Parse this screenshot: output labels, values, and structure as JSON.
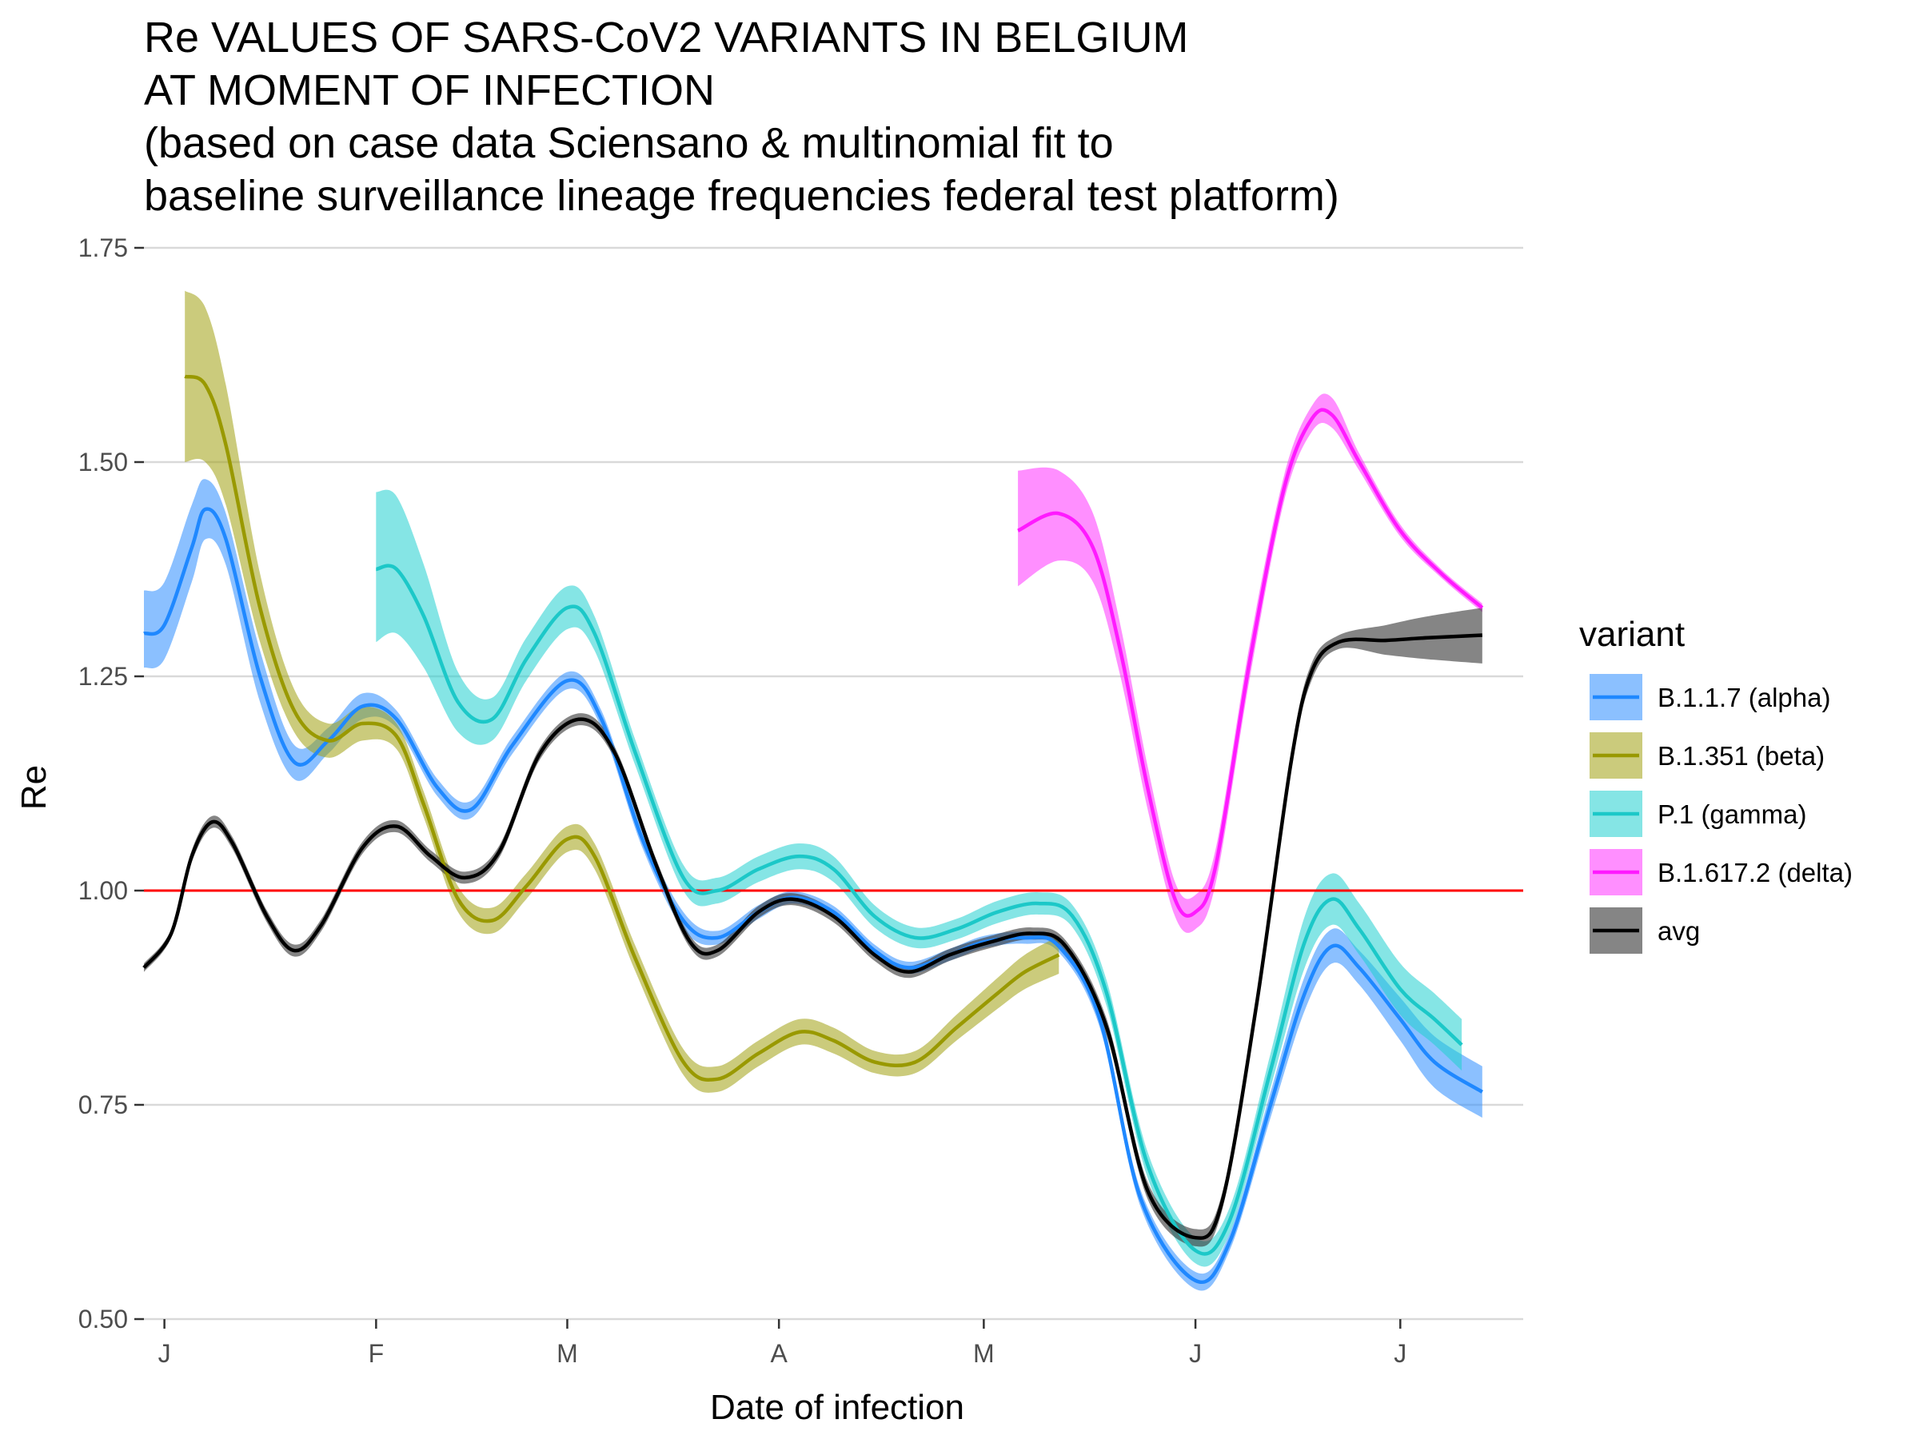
{
  "chart_data": {
    "type": "line",
    "title_lines": [
      "Re VALUES OF SARS-CoV2 VARIANTS IN BELGIUM",
      "AT MOMENT OF INFECTION",
      "(based on case data Sciensano & multinomial fit to",
      "baseline surveillance lineage frequencies federal test platform)"
    ],
    "xlabel": "Date of infection",
    "ylabel": "Re",
    "ylim": [
      0.5,
      1.75
    ],
    "yticks": [
      {
        "value": 0.5,
        "label": "0.50"
      },
      {
        "value": 0.75,
        "label": "0.75"
      },
      {
        "value": 1.0,
        "label": "1.00"
      },
      {
        "value": 1.25,
        "label": "1.25"
      },
      {
        "value": 1.5,
        "label": "1.50"
      },
      {
        "value": 1.75,
        "label": "1.75"
      }
    ],
    "xlim": [
      "2020-12-29",
      "2021-07-19"
    ],
    "xticks": [
      {
        "date": "2021-01-01",
        "label": "J"
      },
      {
        "date": "2021-02-01",
        "label": "F"
      },
      {
        "date": "2021-03-01",
        "label": "M"
      },
      {
        "date": "2021-04-01",
        "label": "A"
      },
      {
        "date": "2021-05-01",
        "label": "M"
      },
      {
        "date": "2021-06-01",
        "label": "J"
      },
      {
        "date": "2021-07-01",
        "label": "J"
      }
    ],
    "reference_line": {
      "y": 1.0,
      "color": "#ff0000"
    },
    "legend_title": "variant",
    "legend_position": "right",
    "grid": true,
    "series": [
      {
        "name": "B.1.1.7 (alpha)",
        "color": "#1f88ff",
        "ribbon": "#2b8cff",
        "ribbon_opacity": 0.55,
        "points": [
          [
            "2020-12-29",
            1.3,
            1.26,
            1.35
          ],
          [
            "2021-01-01",
            1.31,
            1.27,
            1.36
          ],
          [
            "2021-01-05",
            1.4,
            1.36,
            1.45
          ],
          [
            "2021-01-07",
            1.445,
            1.41,
            1.48
          ],
          [
            "2021-01-10",
            1.41,
            1.38,
            1.44
          ],
          [
            "2021-01-15",
            1.25,
            1.22,
            1.28
          ],
          [
            "2021-01-20",
            1.15,
            1.13,
            1.17
          ],
          [
            "2021-01-25",
            1.175,
            1.16,
            1.19
          ],
          [
            "2021-01-30",
            1.215,
            1.2,
            1.23
          ],
          [
            "2021-02-04",
            1.2,
            1.19,
            1.21
          ],
          [
            "2021-02-10",
            1.12,
            1.11,
            1.13
          ],
          [
            "2021-02-15",
            1.095,
            1.085,
            1.105
          ],
          [
            "2021-02-21",
            1.17,
            1.16,
            1.18
          ],
          [
            "2021-03-01",
            1.245,
            1.235,
            1.255
          ],
          [
            "2021-03-06",
            1.2,
            1.19,
            1.21
          ],
          [
            "2021-03-12",
            1.06,
            1.05,
            1.07
          ],
          [
            "2021-03-18",
            0.965,
            0.955,
            0.975
          ],
          [
            "2021-03-23",
            0.945,
            0.937,
            0.953
          ],
          [
            "2021-03-29",
            0.975,
            0.967,
            0.983
          ],
          [
            "2021-04-03",
            0.992,
            0.985,
            0.999
          ],
          [
            "2021-04-09",
            0.975,
            0.968,
            0.982
          ],
          [
            "2021-04-15",
            0.93,
            0.923,
            0.937
          ],
          [
            "2021-04-20",
            0.91,
            0.903,
            0.917
          ],
          [
            "2021-04-26",
            0.925,
            0.918,
            0.932
          ],
          [
            "2021-05-01",
            0.94,
            0.933,
            0.947
          ],
          [
            "2021-05-07",
            0.945,
            0.938,
            0.952
          ],
          [
            "2021-05-12",
            0.935,
            0.928,
            0.942
          ],
          [
            "2021-05-18",
            0.85,
            0.84,
            0.86
          ],
          [
            "2021-05-24",
            0.64,
            0.63,
            0.65
          ],
          [
            "2021-06-01",
            0.545,
            0.535,
            0.555
          ],
          [
            "2021-06-06",
            0.59,
            0.58,
            0.6
          ],
          [
            "2021-06-12",
            0.75,
            0.735,
            0.765
          ],
          [
            "2021-06-17",
            0.88,
            0.86,
            0.9
          ],
          [
            "2021-06-21",
            0.935,
            0.915,
            0.955
          ],
          [
            "2021-06-25",
            0.91,
            0.89,
            0.93
          ],
          [
            "2021-07-01",
            0.85,
            0.825,
            0.875
          ],
          [
            "2021-07-06",
            0.8,
            0.77,
            0.83
          ],
          [
            "2021-07-13",
            0.765,
            0.735,
            0.795
          ]
        ]
      },
      {
        "name": "B.1.351 (beta)",
        "color": "#999900",
        "ribbon": "#a0a010",
        "ribbon_opacity": 0.55,
        "points": [
          [
            "2021-01-04",
            1.6,
            1.5,
            1.7
          ],
          [
            "2021-01-07",
            1.59,
            1.5,
            1.68
          ],
          [
            "2021-01-10",
            1.52,
            1.45,
            1.59
          ],
          [
            "2021-01-15",
            1.33,
            1.29,
            1.37
          ],
          [
            "2021-01-20",
            1.21,
            1.185,
            1.235
          ],
          [
            "2021-01-25",
            1.175,
            1.155,
            1.195
          ],
          [
            "2021-01-30",
            1.195,
            1.175,
            1.215
          ],
          [
            "2021-02-04",
            1.18,
            1.165,
            1.195
          ],
          [
            "2021-02-08",
            1.1,
            1.085,
            1.115
          ],
          [
            "2021-02-13",
            0.99,
            0.975,
            1.005
          ],
          [
            "2021-02-18",
            0.965,
            0.95,
            0.98
          ],
          [
            "2021-02-23",
            1.005,
            0.99,
            1.02
          ],
          [
            "2021-03-01",
            1.06,
            1.045,
            1.075
          ],
          [
            "2021-03-05",
            1.04,
            1.025,
            1.055
          ],
          [
            "2021-03-11",
            0.92,
            0.905,
            0.935
          ],
          [
            "2021-03-18",
            0.8,
            0.785,
            0.815
          ],
          [
            "2021-03-23",
            0.78,
            0.765,
            0.795
          ],
          [
            "2021-03-29",
            0.81,
            0.795,
            0.825
          ],
          [
            "2021-04-04",
            0.835,
            0.82,
            0.85
          ],
          [
            "2021-04-09",
            0.825,
            0.81,
            0.84
          ],
          [
            "2021-04-15",
            0.8,
            0.787,
            0.813
          ],
          [
            "2021-04-21",
            0.8,
            0.787,
            0.813
          ],
          [
            "2021-04-27",
            0.84,
            0.825,
            0.855
          ],
          [
            "2021-05-03",
            0.88,
            0.862,
            0.898
          ],
          [
            "2021-05-07",
            0.905,
            0.885,
            0.925
          ],
          [
            "2021-05-12",
            0.925,
            0.903,
            0.947
          ]
        ]
      },
      {
        "name": "P.1 (gamma)",
        "color": "#1cc8c8",
        "ribbon": "#20d0d0",
        "ribbon_opacity": 0.55,
        "points": [
          [
            "2021-02-01",
            1.375,
            1.29,
            1.465
          ],
          [
            "2021-02-04",
            1.375,
            1.3,
            1.46
          ],
          [
            "2021-02-08",
            1.32,
            1.26,
            1.38
          ],
          [
            "2021-02-13",
            1.22,
            1.185,
            1.255
          ],
          [
            "2021-02-18",
            1.2,
            1.175,
            1.225
          ],
          [
            "2021-02-23",
            1.27,
            1.245,
            1.295
          ],
          [
            "2021-03-01",
            1.33,
            1.305,
            1.355
          ],
          [
            "2021-03-05",
            1.3,
            1.28,
            1.32
          ],
          [
            "2021-03-11",
            1.16,
            1.145,
            1.175
          ],
          [
            "2021-03-18",
            1.015,
            1.0,
            1.03
          ],
          [
            "2021-03-23",
            1.0,
            0.985,
            1.015
          ],
          [
            "2021-03-29",
            1.025,
            1.01,
            1.04
          ],
          [
            "2021-04-04",
            1.04,
            1.025,
            1.055
          ],
          [
            "2021-04-09",
            1.025,
            1.01,
            1.04
          ],
          [
            "2021-04-15",
            0.97,
            0.957,
            0.983
          ],
          [
            "2021-04-21",
            0.945,
            0.933,
            0.957
          ],
          [
            "2021-04-27",
            0.955,
            0.943,
            0.967
          ],
          [
            "2021-05-03",
            0.975,
            0.962,
            0.988
          ],
          [
            "2021-05-09",
            0.985,
            0.972,
            0.998
          ],
          [
            "2021-05-14",
            0.97,
            0.957,
            0.983
          ],
          [
            "2021-05-19",
            0.88,
            0.865,
            0.895
          ],
          [
            "2021-05-25",
            0.68,
            0.665,
            0.695
          ],
          [
            "2021-06-01",
            0.58,
            0.565,
            0.595
          ],
          [
            "2021-06-06",
            0.615,
            0.6,
            0.63
          ],
          [
            "2021-06-12",
            0.79,
            0.77,
            0.81
          ],
          [
            "2021-06-17",
            0.94,
            0.91,
            0.97
          ],
          [
            "2021-06-21",
            0.99,
            0.96,
            1.02
          ],
          [
            "2021-06-25",
            0.955,
            0.925,
            0.985
          ],
          [
            "2021-07-01",
            0.885,
            0.855,
            0.915
          ],
          [
            "2021-07-06",
            0.85,
            0.82,
            0.88
          ],
          [
            "2021-07-10",
            0.82,
            0.79,
            0.85
          ]
        ]
      },
      {
        "name": "B.1.617.2 (delta)",
        "color": "#ff1aff",
        "ribbon": "#ff33ff",
        "ribbon_opacity": 0.55,
        "points": [
          [
            "2021-05-06",
            1.42,
            1.355,
            1.49
          ],
          [
            "2021-05-12",
            1.44,
            1.385,
            1.49
          ],
          [
            "2021-05-17",
            1.4,
            1.36,
            1.44
          ],
          [
            "2021-05-21",
            1.28,
            1.25,
            1.31
          ],
          [
            "2021-05-25",
            1.12,
            1.095,
            1.145
          ],
          [
            "2021-05-29",
            0.99,
            0.97,
            1.01
          ],
          [
            "2021-06-01",
            0.975,
            0.955,
            0.995
          ],
          [
            "2021-06-04",
            1.03,
            1.01,
            1.05
          ],
          [
            "2021-06-09",
            1.27,
            1.25,
            1.29
          ],
          [
            "2021-06-14",
            1.47,
            1.455,
            1.485
          ],
          [
            "2021-06-18",
            1.55,
            1.535,
            1.565
          ],
          [
            "2021-06-21",
            1.555,
            1.54,
            1.575
          ],
          [
            "2021-06-25",
            1.5,
            1.49,
            1.51
          ],
          [
            "2021-07-01",
            1.42,
            1.413,
            1.427
          ],
          [
            "2021-07-07",
            1.37,
            1.365,
            1.375
          ],
          [
            "2021-07-13",
            1.33,
            1.325,
            1.335
          ]
        ]
      },
      {
        "name": "avg",
        "color": "#000000",
        "ribbon": "#333333",
        "ribbon_opacity": 0.6,
        "points": [
          [
            "2020-12-29",
            0.91,
            0.905,
            0.915
          ],
          [
            "2021-01-02",
            0.95,
            0.945,
            0.955
          ],
          [
            "2021-01-05",
            1.04,
            1.033,
            1.047
          ],
          [
            "2021-01-08",
            1.08,
            1.073,
            1.087
          ],
          [
            "2021-01-11",
            1.055,
            1.048,
            1.062
          ],
          [
            "2021-01-16",
            0.97,
            0.963,
            0.977
          ],
          [
            "2021-01-20",
            0.93,
            0.923,
            0.937
          ],
          [
            "2021-01-24",
            0.96,
            0.953,
            0.967
          ],
          [
            "2021-01-30",
            1.05,
            1.043,
            1.057
          ],
          [
            "2021-02-04",
            1.075,
            1.068,
            1.082
          ],
          [
            "2021-02-09",
            1.04,
            1.033,
            1.047
          ],
          [
            "2021-02-14",
            1.015,
            1.008,
            1.022
          ],
          [
            "2021-02-19",
            1.045,
            1.038,
            1.052
          ],
          [
            "2021-02-25",
            1.16,
            1.153,
            1.167
          ],
          [
            "2021-03-03",
            1.2,
            1.193,
            1.207
          ],
          [
            "2021-03-08",
            1.16,
            1.153,
            1.167
          ],
          [
            "2021-03-14",
            1.03,
            1.023,
            1.037
          ],
          [
            "2021-03-19",
            0.94,
            0.933,
            0.947
          ],
          [
            "2021-03-23",
            0.93,
            0.923,
            0.937
          ],
          [
            "2021-03-29",
            0.975,
            0.968,
            0.982
          ],
          [
            "2021-04-03",
            0.99,
            0.983,
            0.997
          ],
          [
            "2021-04-09",
            0.97,
            0.963,
            0.977
          ],
          [
            "2021-04-15",
            0.925,
            0.918,
            0.932
          ],
          [
            "2021-04-20",
            0.905,
            0.898,
            0.912
          ],
          [
            "2021-04-26",
            0.925,
            0.918,
            0.932
          ],
          [
            "2021-05-02",
            0.94,
            0.933,
            0.947
          ],
          [
            "2021-05-08",
            0.95,
            0.943,
            0.957
          ],
          [
            "2021-05-13",
            0.935,
            0.928,
            0.942
          ],
          [
            "2021-05-19",
            0.84,
            0.83,
            0.85
          ],
          [
            "2021-05-25",
            0.65,
            0.64,
            0.66
          ],
          [
            "2021-06-01",
            0.595,
            0.585,
            0.605
          ],
          [
            "2021-06-05",
            0.64,
            0.63,
            0.65
          ],
          [
            "2021-06-10",
            0.87,
            0.86,
            0.88
          ],
          [
            "2021-06-15",
            1.15,
            1.14,
            1.16
          ],
          [
            "2021-06-18",
            1.255,
            1.245,
            1.265
          ],
          [
            "2021-06-22",
            1.29,
            1.282,
            1.298
          ],
          [
            "2021-06-29",
            1.292,
            1.275,
            1.31
          ],
          [
            "2021-07-05",
            1.295,
            1.27,
            1.32
          ],
          [
            "2021-07-13",
            1.298,
            1.265,
            1.33
          ]
        ]
      }
    ]
  }
}
